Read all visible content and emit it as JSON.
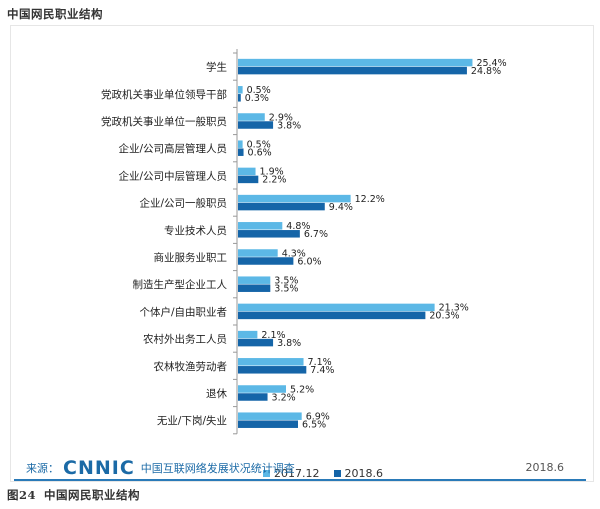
{
  "header": {
    "title": "中国网民职业结构"
  },
  "footer": {
    "source_label": "来源：",
    "logo_text": "CNNIC",
    "source_name": "中国互联网络发展状况统计调查",
    "date": "2018.6"
  },
  "figure": {
    "number": "图24",
    "caption": "中国网民职业结构"
  },
  "colors": {
    "series_2017": "#5cb8e6",
    "series_2018": "#1565a8",
    "axis": "#999999",
    "text": "#222222"
  },
  "chart_data": {
    "type": "bar",
    "orientation": "horizontal",
    "categories": [
      "学生",
      "党政机关事业单位领导干部",
      "党政机关事业单位一般职员",
      "企业/公司高层管理人员",
      "企业/公司中层管理人员",
      "企业/公司一般职员",
      "专业技术人员",
      "商业服务业职工",
      "制造生产型企业工人",
      "个体户/自由职业者",
      "农村外出务工人员",
      "农林牧渔劳动者",
      "退休",
      "无业/下岗/失业"
    ],
    "series": [
      {
        "name": "2017.12",
        "values": [
          25.4,
          0.5,
          2.9,
          0.5,
          1.9,
          12.2,
          4.8,
          4.3,
          3.5,
          21.3,
          2.1,
          7.1,
          5.2,
          6.9
        ],
        "labels": [
          "25.4%",
          "0.5%",
          "2.9%",
          "0.5%",
          "1.9%",
          "12.2%",
          "4.8%",
          "4.3%",
          "3.5%",
          "21.3%",
          "2.1%",
          "7.1%",
          "5.2%",
          "6.9%"
        ]
      },
      {
        "name": "2018.6",
        "values": [
          24.8,
          0.3,
          3.8,
          0.6,
          2.2,
          9.4,
          6.7,
          6.0,
          3.5,
          20.3,
          3.8,
          7.4,
          3.2,
          6.5
        ],
        "labels": [
          "24.8%",
          "0.3%",
          "3.8%",
          "0.6%",
          "2.2%",
          "9.4%",
          "6.7%",
          "6.0%",
          "3.5%",
          "20.3%",
          "3.8%",
          "7.4%",
          "3.2%",
          "6.5%"
        ]
      }
    ],
    "xlim": [
      0,
      26
    ],
    "legend_position": "bottom",
    "grid": false
  }
}
